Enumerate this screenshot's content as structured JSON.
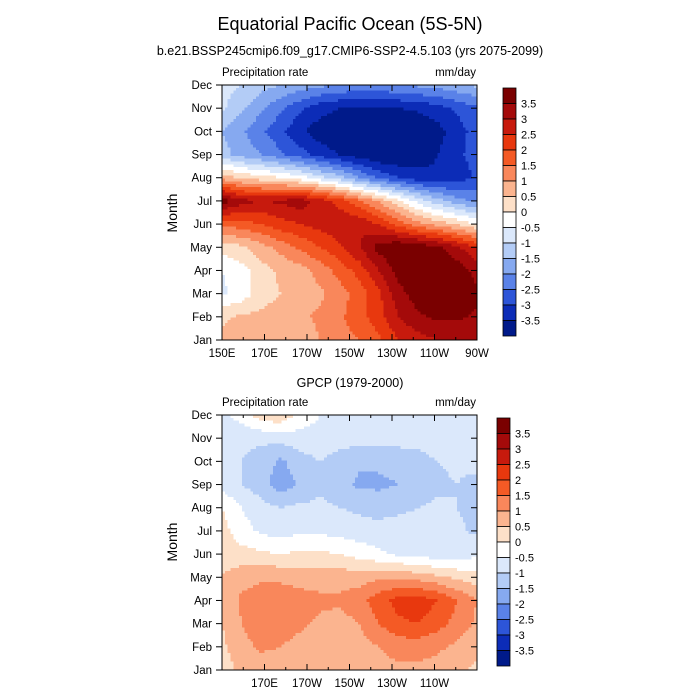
{
  "figure": {
    "title": "Equatorial Pacific Ocean (5S-5N)"
  },
  "colorbar": {
    "levels": [
      "3.5",
      "3",
      "2.5",
      "2",
      "1.5",
      "1",
      "0.5",
      "0",
      "-0.5",
      "-1",
      "-1.5",
      "-2",
      "-2.5",
      "-3",
      "-3.5"
    ],
    "colors": [
      "#7a0000",
      "#a40a0a",
      "#c71a0d",
      "#e8380e",
      "#f45a25",
      "#f9875b",
      "#fbb48f",
      "#fde0c8",
      "#ffffff",
      "#dbe8fb",
      "#b3ccf6",
      "#86a9f0",
      "#5a82e8",
      "#2d55d8",
      "#0c2cb7",
      "#001a8a"
    ]
  },
  "chart_data": [
    {
      "type": "heatmap",
      "title": "b.e21.BSSP245cmip6.f09_g17.CMIP6-SSP2-4.5.103 (yrs 2075-2099)",
      "left_label": "Precipitation rate",
      "right_label": "mm/day",
      "ylabel": "Month",
      "xticks": [
        "150E",
        "170E",
        "170W",
        "150W",
        "130W",
        "110W",
        "90W"
      ],
      "yticks": [
        "Jan",
        "Feb",
        "Mar",
        "Apr",
        "May",
        "Jun",
        "Jul",
        "Aug",
        "Sep",
        "Oct",
        "Nov",
        "Dec"
      ],
      "xlim": [
        "150E",
        "90W"
      ],
      "ylim": [
        "Jan",
        "Dec"
      ],
      "field": [
        [
          0.6,
          0.8,
          0.7,
          0.6,
          0.7,
          1.0,
          1.3,
          1.5,
          1.9,
          2.5,
          2.8,
          3.0,
          3.1,
          3.0
        ],
        [
          0.4,
          0.6,
          0.6,
          0.7,
          0.9,
          1.1,
          1.4,
          1.8,
          2.3,
          3.0,
          3.4,
          3.6,
          3.6,
          3.4
        ],
        [
          -0.6,
          -0.3,
          0.3,
          0.5,
          0.7,
          0.9,
          1.3,
          1.7,
          2.4,
          3.3,
          3.8,
          4.0,
          4.0,
          3.6
        ],
        [
          -0.5,
          -0.2,
          0.3,
          0.6,
          0.8,
          1.2,
          1.7,
          2.2,
          3.0,
          3.7,
          4.0,
          4.0,
          3.8,
          3.3
        ],
        [
          0.2,
          0.4,
          0.8,
          1.2,
          1.6,
          2.0,
          2.4,
          3.0,
          3.7,
          4.0,
          3.9,
          3.6,
          3.1,
          2.5
        ],
        [
          1.6,
          1.8,
          2.0,
          2.3,
          2.5,
          2.7,
          2.9,
          2.9,
          2.5,
          1.8,
          1.2,
          0.8,
          0.4,
          0.0
        ],
        [
          3.8,
          3.2,
          3.0,
          3.1,
          3.3,
          2.8,
          2.3,
          1.6,
          0.9,
          0.1,
          -0.7,
          -1.3,
          -1.8,
          -2.1
        ],
        [
          0.8,
          0.4,
          0.2,
          0.0,
          -0.3,
          -0.8,
          -1.3,
          -2.0,
          -2.6,
          -3.0,
          -3.3,
          -3.4,
          -3.3,
          -2.9
        ],
        [
          -1.3,
          -1.7,
          -2.0,
          -2.4,
          -2.8,
          -3.2,
          -3.5,
          -3.8,
          -4.0,
          -4.0,
          -3.8,
          -3.5,
          -3.1,
          -2.8
        ],
        [
          -1.5,
          -1.9,
          -2.4,
          -2.9,
          -3.4,
          -3.8,
          -4.0,
          -4.0,
          -4.0,
          -4.0,
          -4.0,
          -3.7,
          -3.2,
          -2.8
        ],
        [
          -0.9,
          -1.4,
          -1.9,
          -2.4,
          -2.9,
          -3.3,
          -3.5,
          -3.6,
          -3.6,
          -3.5,
          -3.4,
          -3.2,
          -2.9,
          -2.6
        ],
        [
          -0.8,
          -1.0,
          -1.3,
          -1.5,
          -1.7,
          -1.9,
          -2.0,
          -2.1,
          -2.1,
          -2.0,
          -1.9,
          -1.8,
          -1.6,
          -1.4
        ]
      ]
    },
    {
      "type": "heatmap",
      "title": "GPCP (1979-2000)",
      "left_label": "Precipitation rate",
      "right_label": "mm/day",
      "ylabel": "Month",
      "xticks": [
        "170E",
        "170W",
        "150W",
        "130W",
        "110W"
      ],
      "yticks": [
        "Jan",
        "Feb",
        "Mar",
        "Apr",
        "May",
        "Jun",
        "Jul",
        "Aug",
        "Sep",
        "Oct",
        "Nov",
        "Dec"
      ],
      "xlim": [
        "150E",
        "90W"
      ],
      "ylim": [
        "Jan",
        "Dec"
      ],
      "field": [
        [
          0.3,
          0.6,
          0.7,
          0.7,
          0.6,
          0.5,
          0.5,
          0.6,
          0.8,
          0.9,
          0.9,
          0.8,
          0.6,
          0.4
        ],
        [
          0.4,
          0.8,
          1.1,
          1.0,
          0.8,
          0.7,
          0.6,
          0.8,
          1.0,
          1.2,
          1.2,
          1.1,
          0.9,
          0.6
        ],
        [
          0.5,
          1.0,
          1.4,
          1.3,
          1.1,
          0.9,
          0.8,
          1.0,
          1.5,
          1.9,
          2.0,
          1.7,
          1.3,
          0.9
        ],
        [
          0.6,
          1.1,
          1.3,
          1.3,
          1.2,
          1.1,
          1.1,
          1.3,
          1.8,
          2.2,
          2.3,
          2.0,
          1.5,
          1.0
        ],
        [
          0.5,
          0.8,
          0.9,
          0.9,
          0.8,
          0.8,
          0.8,
          0.8,
          0.9,
          0.9,
          0.8,
          0.6,
          0.4,
          0.2
        ],
        [
          0.3,
          0.2,
          0.1,
          0.0,
          0.1,
          0.1,
          0.0,
          -0.2,
          -0.4,
          -0.6,
          -0.7,
          -0.8,
          -0.8,
          -0.6
        ],
        [
          0.2,
          -0.3,
          -0.6,
          -0.7,
          -0.6,
          -0.6,
          -0.7,
          -0.8,
          -0.8,
          -0.8,
          -0.8,
          -0.8,
          -0.9,
          -1.1
        ],
        [
          0.0,
          -0.5,
          -0.8,
          -1.0,
          -0.9,
          -0.9,
          -1.0,
          -1.1,
          -1.2,
          -1.1,
          -1.0,
          -0.9,
          -1.0,
          -1.2
        ],
        [
          -0.7,
          -1.0,
          -1.3,
          -1.8,
          -1.4,
          -1.1,
          -1.3,
          -1.6,
          -1.6,
          -1.5,
          -1.3,
          -1.1,
          -1.0,
          -1.2
        ],
        [
          -0.9,
          -1.0,
          -1.2,
          -1.6,
          -1.2,
          -1.0,
          -1.2,
          -1.4,
          -1.4,
          -1.3,
          -1.2,
          -1.0,
          -0.9,
          -0.8
        ],
        [
          -0.8,
          -0.9,
          -0.9,
          -0.8,
          -0.7,
          -0.7,
          -0.8,
          -0.8,
          -0.8,
          -0.8,
          -0.8,
          -0.7,
          -0.7,
          -0.7
        ],
        [
          -0.6,
          -0.3,
          0.3,
          0.4,
          -0.2,
          -0.5,
          -0.6,
          -0.7,
          -0.7,
          -0.7,
          -0.7,
          -0.6,
          -0.6,
          -0.6
        ]
      ]
    }
  ]
}
